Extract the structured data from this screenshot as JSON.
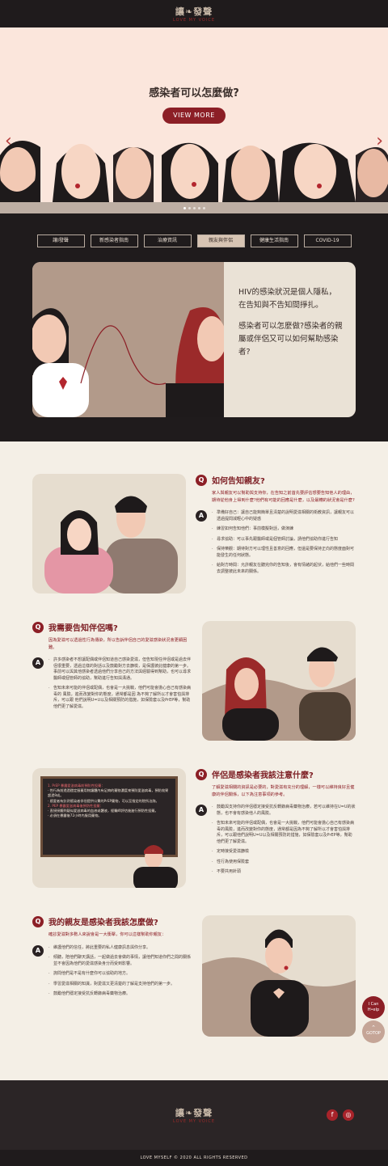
{
  "header": {
    "logo_zh": "讓❧發聲",
    "logo_en": "LOVE MY VOICE"
  },
  "hero": {
    "title": "感染者可以怎麼做?",
    "button": "VIEW MORE"
  },
  "tabs": [
    "讓I發聲",
    "新感染者指南",
    "治療資訊",
    "親友與伴侶",
    "健康生活指南",
    "COVID-19"
  ],
  "featured": {
    "p1": "HIV的感染狀況是個人隱私，在告知與不告知間掙扎。",
    "p2": "感染者可以怎麼做?感染者的親屬或伴侶又可以如何幫助感染者?"
  },
  "sections": [
    {
      "q": "如何告知親友?",
      "sub": "家人與親友可以幫助與支持你，在告知之前首先要評估想要告知他人的理由，期待從他身上得到什麼?他們有可能的回應是什麼，以及最糟的狀況會是什麼?",
      "items": [
        "準備好自己：讓自己能夠簡單且清楚的說明愛滋相關的衛教資訊，讓親友可以透過提問減輕心中的疑惑",
        "練習如何告知他們：事前模擬對話，做演練",
        "尋求協助：可以事先跟醫師或是個管師討論，請他們協助你進行告知",
        "保持樂觀：期待對方可以理性且善意的回應，但還是要保持正向的態度面對可能發生的任何狀態。",
        "給對方時間：允許親友在聽完你的告知後，會有情緒的起伏，給他們一些時間去調整彼此未來的關係。"
      ]
    },
    {
      "q": "我需要告知伴侶嗎?",
      "sub": "因為愛滋可以透過性行為傳染，所以告訴伴侶自己的愛滋感染狀況會更顯困難。",
      "items": [
        "許多感染者不想讓配偶或伴侶知道自己感染愛滋，但告知現任伴侶或是過去伴侶很重要，透過這樣的對話以及鼓勵對方去篩檢，是保護彼此健康的第一步。事前可以與其他感染者透過他們分享自己的方法與經驗得到幫助，也可以尋求醫師或個管師的協助，幫助進行告知與溝通。",
        "告知未來可能的伴侶或配偶，也會是一大挑戰，他們可能會擔心自己有感染病毒的 風險，進而改變對你的態度，通常都是因 為不夠了解所以才會害怕與排斥，可以跟 他們說明U=U以及相關預防的措施，如保險套以及PrEP等，幫助他們更了解愛滋。"
      ]
    },
    {
      "q": "伴侶是感染者我該注意什麼?",
      "sub": "了解愛滋相關的資訊是必要的，對愛滋有充分的理解，一樣可以維持良好且健康的伴侶關係，以下為注意事項的參考。",
      "items": [
        "鼓勵與支持你的伴侶穩定接受抗反轉錄病毒藥物治療，若可以維持在U=U的狀態，也不會有感染他人的風險。",
        "告知未來可能的伴侶或配偶，也會是一大挑戰，他們可能會擔心自己有感染病毒的風險，進而改變對你的態度，通常都是因為不夠了解所以才會害怕與排斥，可以跟他們說明U=U以及相關預防的措施，如保險套以及PrEP等，幫助他們更了解愛滋。",
        "定時接受愛滋篩檢",
        "性行為使用保險套",
        "不要共用針頭"
      ],
      "board": [
        "1. PrEP 暴露愛滋病毒前預防性投藥：",
        "‧ 性行為前透過穩定服藥用物讓體內有足夠的藥物濃度來預防愛滋病毒，預防效果超過9成。",
        "‧ 感愛者有針對感染者伴侶提供公費的PrEP藥物，可以至指定的院所洽詢。",
        "2. PEP 暴露愛滋病毒後預防性投藥：",
        "‧ 直接接觸到疑似愛滋病毒的血液或體液，經醫師評估後進行預防性投藥。",
        "‧ 必須在暴露後72小時內服用藥物。"
      ]
    },
    {
      "q": "我的親友是感染者我該怎麼做?",
      "sub": "確診愛滋對多數人來說會是一大衝擊，你可以這樣幫助你親友：",
      "items": [
        "維護他們的信任，將此重要的私人健康訊息與你分享。",
        "傾聽，陪他們聊天講話，一起做過去會做的事情，讓他們知道你們之間的關係並不會因為他們的愛滋感染身分而受到影響。",
        "詢問他們是不是有什麼你可以協助的地方。",
        "學習愛滋相關的知識，對愛滋又更清楚的了解是支持他們的第一步。",
        "鼓勵他們穩定接受抗反轉錄病毒藥物治療。"
      ]
    }
  ],
  "float": {
    "help": "I Can H•elp",
    "top": "GOTOP"
  },
  "footer": {
    "copyright": "LOVE MYSELF © 2020 ALL RIGHTS RESERVED",
    "fb": "f",
    "ig": "◎"
  },
  "colors": {
    "accent": "#8c1f26",
    "dark": "#1f1b1c",
    "cream": "#f4efe6"
  }
}
